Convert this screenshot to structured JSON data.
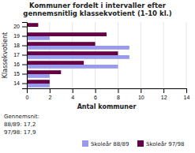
{
  "chart_data": {
    "type": "bar",
    "orientation": "horizontal",
    "title": "Kommuner fordelt i intervaller efter\ngennemsnitlig klassekvotient (1-10 kl.)",
    "xlabel": "Antal kommuner",
    "ylabel": "Klassekvotient",
    "categories": [
      14,
      15,
      16,
      17,
      18,
      19,
      20
    ],
    "series": [
      {
        "name": "Skoleår 88/89",
        "color": "#9999ee",
        "values": [
          2,
          2,
          8,
          9,
          9,
          2,
          0
        ]
      },
      {
        "name": "Skoleår 97/98",
        "color": "#660044",
        "values": [
          2,
          3,
          5,
          8,
          6,
          7,
          1
        ]
      }
    ],
    "xlim": [
      0,
      14
    ],
    "xticks": [
      0,
      2,
      4,
      6,
      8,
      10,
      12,
      14
    ],
    "grid": true,
    "legend": "lower right",
    "annotations": [
      "Gennemsnit:",
      "88/89: 17,2",
      "97/98: 17,9"
    ]
  }
}
